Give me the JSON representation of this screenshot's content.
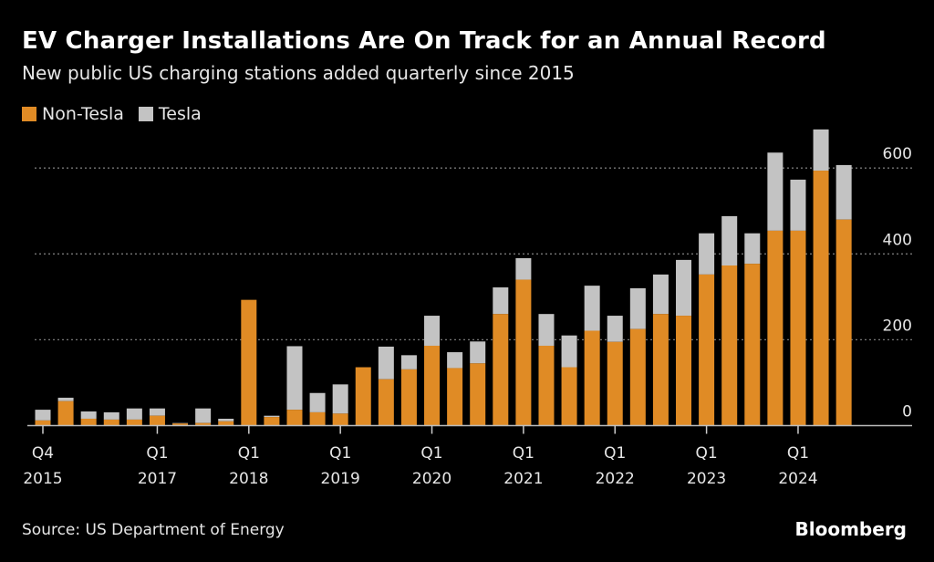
{
  "title": "EV Charger Installations Are On Track for an Annual Record",
  "subtitle": "New public US charging stations added quarterly since 2015",
  "source": "Source: US Department of Energy",
  "logo": "Bloomberg",
  "colors": {
    "non_tesla": "#e08b25",
    "tesla": "#c3c3c3",
    "grid": "#777777"
  },
  "chart_data": {
    "type": "bar",
    "stacked": true,
    "title": "EV Charger Installations Are On Track for an Annual Record",
    "legend": [
      "Non-Tesla",
      "Tesla"
    ],
    "legend_position": "top-left",
    "ylim": [
      0,
      700
    ],
    "yticks": [
      0,
      200,
      400,
      600
    ],
    "grid": true,
    "categories": [
      "Q4 2015",
      "Q1 2016",
      "Q2 2016",
      "Q3 2016",
      "Q4 2016",
      "Q1 2017",
      "Q2 2017",
      "Q3 2017",
      "Q4 2017",
      "Q1 2018",
      "Q2 2018",
      "Q3 2018",
      "Q4 2018",
      "Q1 2019",
      "Q2 2019",
      "Q3 2019",
      "Q4 2019",
      "Q1 2020",
      "Q2 2020",
      "Q3 2020",
      "Q4 2020",
      "Q1 2021",
      "Q2 2021",
      "Q3 2021",
      "Q4 2021",
      "Q1 2022",
      "Q2 2022",
      "Q3 2022",
      "Q4 2022",
      "Q1 2023",
      "Q2 2023",
      "Q3 2023",
      "Q4 2023",
      "Q1 2024",
      "Q2 2024",
      "Q3 2024"
    ],
    "xtick_labels": [
      {
        "index": 0,
        "q": "Q4",
        "y": "2015"
      },
      {
        "index": 5,
        "q": "Q1",
        "y": "2017"
      },
      {
        "index": 9,
        "q": "Q1",
        "y": "2018"
      },
      {
        "index": 13,
        "q": "Q1",
        "y": "2019"
      },
      {
        "index": 17,
        "q": "Q1",
        "y": "2020"
      },
      {
        "index": 21,
        "q": "Q1",
        "y": "2021"
      },
      {
        "index": 25,
        "q": "Q1",
        "y": "2022"
      },
      {
        "index": 29,
        "q": "Q1",
        "y": "2023"
      },
      {
        "index": 33,
        "q": "Q1",
        "y": "2024"
      }
    ],
    "series": [
      {
        "name": "Non-Tesla",
        "values": [
          12,
          57,
          16,
          14,
          14,
          23,
          5,
          6,
          10,
          293,
          20,
          37,
          31,
          28,
          136,
          108,
          131,
          186,
          134,
          145,
          260,
          340,
          186,
          136,
          221,
          195,
          225,
          260,
          256,
          352,
          373,
          377,
          454,
          454,
          594,
          480
        ]
      },
      {
        "name": "Tesla",
        "values": [
          25,
          8,
          17,
          17,
          26,
          17,
          1,
          34,
          6,
          0,
          3,
          148,
          45,
          68,
          0,
          76,
          33,
          70,
          37,
          51,
          62,
          50,
          74,
          74,
          105,
          61,
          95,
          92,
          130,
          96,
          115,
          71,
          182,
          119,
          96,
          127
        ]
      }
    ]
  }
}
